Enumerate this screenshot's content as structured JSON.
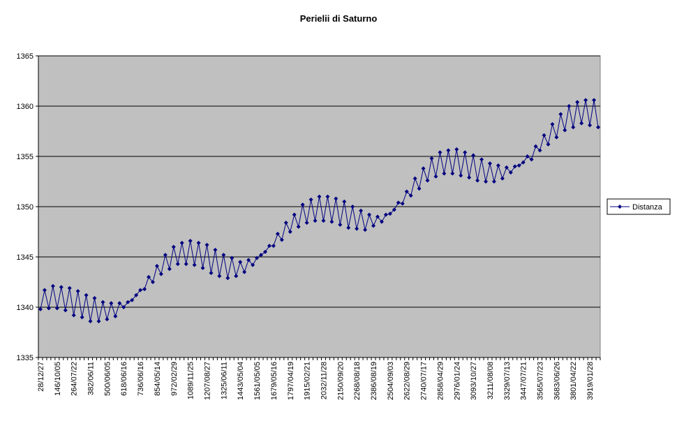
{
  "chart_data": {
    "type": "line",
    "title": "Perielii di Saturno",
    "categories": [
      "28/12/27",
      null,
      null,
      null,
      "146/10/05",
      null,
      null,
      null,
      "264/07/22",
      null,
      null,
      null,
      "382/06/11",
      null,
      null,
      null,
      "500/06/05",
      null,
      null,
      null,
      "618/06/16",
      null,
      null,
      null,
      "736/06/16",
      null,
      null,
      null,
      "854/05/14",
      null,
      null,
      null,
      "972/02/29",
      null,
      null,
      null,
      "1089/11/25",
      null,
      null,
      null,
      "1207/08/27",
      null,
      null,
      null,
      "1325/06/11",
      null,
      null,
      null,
      "1443/05/04",
      null,
      null,
      null,
      "1561/05/05",
      null,
      null,
      null,
      "1679/05/16",
      null,
      null,
      null,
      "1797/04/19",
      null,
      null,
      null,
      "1915/02/21",
      null,
      null,
      null,
      "2032/11/28",
      null,
      null,
      null,
      "2150/09/20",
      null,
      null,
      null,
      "2268/08/18",
      null,
      null,
      null,
      "2386/08/19",
      null,
      null,
      null,
      "2504/09/03",
      null,
      null,
      null,
      "2622/08/29",
      null,
      null,
      null,
      "2740/07/17",
      null,
      null,
      null,
      "2858/04/29",
      null,
      null,
      null,
      "2976/01/24",
      null,
      null,
      null,
      "3093/10/27",
      null,
      null,
      null,
      "3211/08/08",
      null,
      null,
      null,
      "3329/07/13",
      null,
      null,
      null,
      "3447/07/21",
      null,
      null,
      null,
      "3565/07/23",
      null,
      null,
      null,
      "3683/06/26",
      null,
      null,
      null,
      "3801/04/22",
      null,
      null,
      null,
      "3919/01/28",
      null,
      null
    ],
    "series": [
      {
        "name": "Distanza",
        "color": "#000080",
        "values": [
          1339.8,
          1341.7,
          1339.9,
          1342.1,
          1339.9,
          1342.0,
          1339.7,
          1341.9,
          1339.2,
          1341.6,
          1339.0,
          1341.2,
          1338.6,
          1340.9,
          1338.6,
          1340.5,
          1338.8,
          1340.4,
          1339.1,
          1340.4,
          1340.0,
          1340.5,
          1340.7,
          1341.2,
          1341.7,
          1341.8,
          1343.0,
          1342.5,
          1344.1,
          1343.3,
          1345.2,
          1343.8,
          1346.0,
          1344.3,
          1346.4,
          1344.3,
          1346.6,
          1344.2,
          1346.4,
          1343.9,
          1346.2,
          1343.4,
          1345.7,
          1343.1,
          1345.2,
          1342.9,
          1344.9,
          1343.1,
          1344.5,
          1343.5,
          1344.7,
          1344.2,
          1344.9,
          1345.2,
          1345.5,
          1346.1,
          1346.1,
          1347.3,
          1346.7,
          1348.4,
          1347.5,
          1349.2,
          1348.0,
          1350.2,
          1348.4,
          1350.7,
          1348.6,
          1351.0,
          1348.6,
          1351.0,
          1348.5,
          1350.8,
          1348.2,
          1350.5,
          1347.9,
          1350.0,
          1347.8,
          1349.6,
          1347.7,
          1349.2,
          1348.1,
          1349.0,
          1348.5,
          1349.2,
          1349.3,
          1349.7,
          1350.4,
          1350.3,
          1351.5,
          1351.1,
          1352.8,
          1351.8,
          1353.8,
          1352.6,
          1354.8,
          1353.0,
          1355.4,
          1353.3,
          1355.6,
          1353.3,
          1355.7,
          1353.1,
          1355.4,
          1352.9,
          1355.1,
          1352.6,
          1354.7,
          1352.5,
          1354.3,
          1352.5,
          1354.1,
          1352.8,
          1353.9,
          1353.4,
          1354.0,
          1354.1,
          1354.4,
          1355.0,
          1354.7,
          1356.0,
          1355.6,
          1357.1,
          1356.2,
          1358.2,
          1356.9,
          1359.2,
          1357.6,
          1360.0,
          1357.9,
          1360.4,
          1358.3,
          1360.6,
          1358.1,
          1360.6,
          1357.9
        ]
      }
    ],
    "ylim": [
      1335,
      1365
    ],
    "yticks": [
      1335,
      1340,
      1345,
      1350,
      1355,
      1360,
      1365
    ],
    "grid": true,
    "legend": "right"
  }
}
